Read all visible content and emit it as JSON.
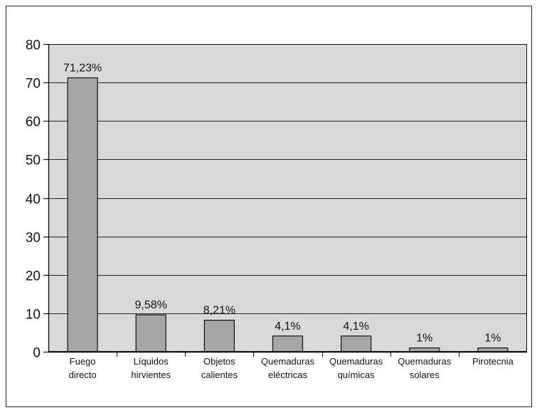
{
  "chart_data": {
    "type": "bar",
    "title": "",
    "xlabel": "",
    "ylabel": "",
    "ylim": [
      0,
      80
    ],
    "yticks": [
      0,
      10,
      20,
      30,
      40,
      50,
      60,
      70,
      80
    ],
    "grid": true,
    "legend": "none",
    "categories": [
      [
        "Fuego",
        "directo"
      ],
      [
        "Líquidos",
        "hirvientes"
      ],
      [
        "Objetos",
        "calientes"
      ],
      [
        "Quemaduras",
        "eléctricas"
      ],
      [
        "Quemaduras",
        "químicas"
      ],
      [
        "Quemaduras",
        "solares"
      ],
      [
        "Pirotecnia"
      ]
    ],
    "values": [
      71.23,
      9.58,
      8.21,
      4.1,
      4.1,
      1,
      1
    ],
    "data_labels": [
      "71,23%",
      "9,58%",
      "8,21%",
      "4,1%",
      "4,1%",
      "1%",
      "1%"
    ],
    "colors": {
      "plot_background": "#d9d9d9",
      "bar_fill": "#a6a6a7",
      "bar_stroke": "#111111",
      "gridline": "#222222",
      "frame": "#111111"
    }
  }
}
